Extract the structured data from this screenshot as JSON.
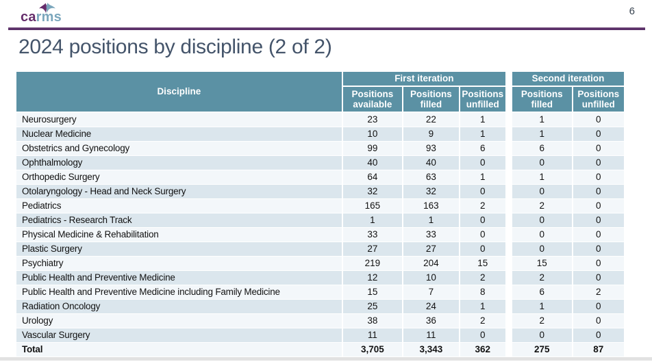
{
  "page": {
    "number": "6"
  },
  "logo": {
    "part1": "ca",
    "part2": "rms"
  },
  "title": "2024 positions by discipline (2 of 2)",
  "colors": {
    "header_teal": "#5b91a4",
    "row_light": "#f3f7fa",
    "row_alt": "#dbe6ed",
    "purple_rule": "#5b3069",
    "title_color": "#44546a",
    "logo_purple": "#652d6b",
    "logo_teal": "#7aa6bc"
  },
  "table": {
    "discipline_header": "Discipline",
    "groups": [
      {
        "label": "First iteration"
      },
      {
        "label": "Second iteration"
      }
    ],
    "subheaders": [
      "Positions available",
      "Positions filled",
      "Positions unfilled",
      "Positions filled",
      "Positions unfilled"
    ],
    "rows": [
      {
        "discipline": "Neurosurgery",
        "values": [
          "23",
          "22",
          "1",
          "1",
          "0"
        ]
      },
      {
        "discipline": "Nuclear Medicine",
        "values": [
          "10",
          "9",
          "1",
          "1",
          "0"
        ]
      },
      {
        "discipline": "Obstetrics and Gynecology",
        "values": [
          "99",
          "93",
          "6",
          "6",
          "0"
        ]
      },
      {
        "discipline": "Ophthalmology",
        "values": [
          "40",
          "40",
          "0",
          "0",
          "0"
        ]
      },
      {
        "discipline": "Orthopedic Surgery",
        "values": [
          "64",
          "63",
          "1",
          "1",
          "0"
        ]
      },
      {
        "discipline": "Otolaryngology - Head and Neck Surgery",
        "values": [
          "32",
          "32",
          "0",
          "0",
          "0"
        ]
      },
      {
        "discipline": "Pediatrics",
        "values": [
          "165",
          "163",
          "2",
          "2",
          "0"
        ]
      },
      {
        "discipline": "Pediatrics - Research Track",
        "values": [
          "1",
          "1",
          "0",
          "0",
          "0"
        ]
      },
      {
        "discipline": "Physical Medicine & Rehabilitation",
        "values": [
          "33",
          "33",
          "0",
          "0",
          "0"
        ]
      },
      {
        "discipline": "Plastic Surgery",
        "values": [
          "27",
          "27",
          "0",
          "0",
          "0"
        ]
      },
      {
        "discipline": "Psychiatry",
        "values": [
          "219",
          "204",
          "15",
          "15",
          "0"
        ]
      },
      {
        "discipline": "Public Health and Preventive Medicine",
        "values": [
          "12",
          "10",
          "2",
          "2",
          "0"
        ]
      },
      {
        "discipline": "Public Health and Preventive Medicine including Family Medicine",
        "values": [
          "15",
          "7",
          "8",
          "6",
          "2"
        ]
      },
      {
        "discipline": "Radiation Oncology",
        "values": [
          "25",
          "24",
          "1",
          "1",
          "0"
        ]
      },
      {
        "discipline": "Urology",
        "values": [
          "38",
          "36",
          "2",
          "2",
          "0"
        ]
      },
      {
        "discipline": "Vascular Surgery",
        "values": [
          "11",
          "11",
          "0",
          "0",
          "0"
        ]
      }
    ],
    "total": {
      "label": "Total",
      "values": [
        "3,705",
        "3,343",
        "362",
        "275",
        "87"
      ]
    }
  }
}
